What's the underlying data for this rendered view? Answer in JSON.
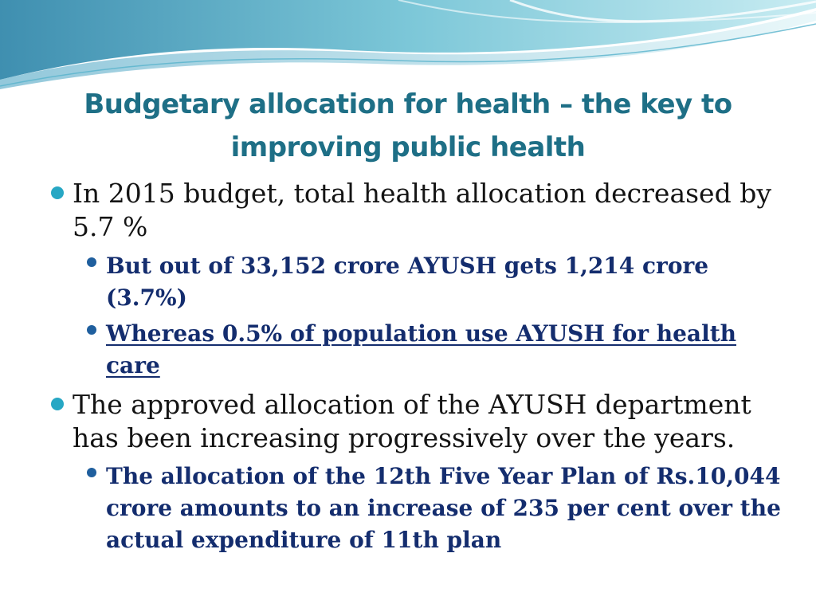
{
  "slide": {
    "title": "Budgetary allocation for health – the key to improving public health",
    "bullets": [
      {
        "text": "In 2015 budget, total health allocation decreased by 5.7 %"
      },
      {
        "text": "But out of 33,152 crore AYUSH gets 1,214 crore (3.7%)"
      },
      {
        "text": "Whereas 0.5% of population use AYUSH for health care"
      },
      {
        "text": "The approved allocation of the AYUSH department has been increasing progressively over the years."
      },
      {
        "text": "The allocation of the 12th Five Year Plan of Rs.10,044 crore amounts to an increase of 235 per cent over the actual expenditure of 11th plan"
      }
    ]
  },
  "colors": {
    "title": "#1e6f86",
    "level1_text": "#141414",
    "level2_text": "#142d6e",
    "level1_bullet": "#27a7c4",
    "level2_bullet": "#1f5f9e"
  }
}
